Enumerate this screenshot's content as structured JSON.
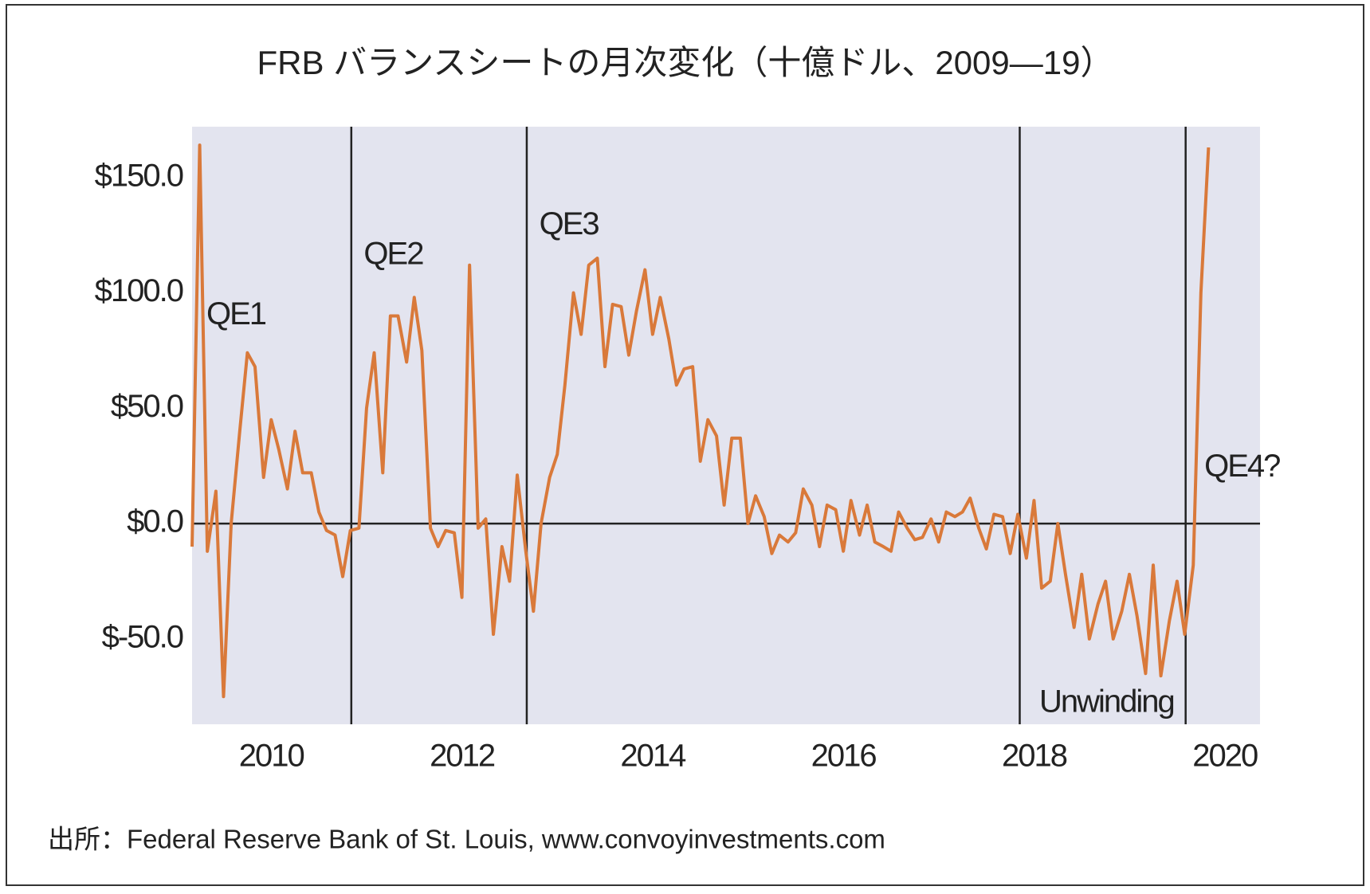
{
  "chart_data": {
    "type": "line",
    "title": "FRB バランスシートの月次変化（十億ドル、2009—19）",
    "source": "出所：Federal Reserve Bank of St. Louis, www.convoyinvestments.com",
    "xlim": [
      2009.17,
      2020.37
    ],
    "xticks": [
      2010,
      2012,
      2014,
      2016,
      2018,
      2020
    ],
    "ylim": [
      -87,
      172
    ],
    "yticks": [
      {
        "value": -50,
        "label": "$-50.0"
      },
      {
        "value": 0,
        "label": "$0.0"
      },
      {
        "value": 50,
        "label": "$50.0"
      },
      {
        "value": 100,
        "label": "$100.0"
      },
      {
        "value": 150,
        "label": "$150.0"
      }
    ],
    "vlines": [
      2010.84,
      2012.68,
      2017.85,
      2019.59
    ],
    "annotations": [
      {
        "text": "QE1",
        "x": 2009.63,
        "y": 90
      },
      {
        "text": "QE2",
        "x": 2011.28,
        "y": 116
      },
      {
        "text": "QE3",
        "x": 2013.12,
        "y": 129
      },
      {
        "text": "Unwinding",
        "x": 2018.76,
        "y": -78
      },
      {
        "text": "QE4?",
        "x": 2020.18,
        "y": 24
      }
    ],
    "series": [
      {
        "color": "#d9793a",
        "x": [
          2009.17,
          2009.25,
          2009.33,
          2009.42,
          2009.5,
          2009.58,
          2009.67,
          2009.75,
          2009.83,
          2009.92,
          2010.0,
          2010.08,
          2010.17,
          2010.25,
          2010.33,
          2010.42,
          2010.5,
          2010.58,
          2010.67,
          2010.75,
          2010.83,
          2010.92,
          2011.0,
          2011.08,
          2011.17,
          2011.25,
          2011.33,
          2011.42,
          2011.5,
          2011.58,
          2011.67,
          2011.75,
          2011.83,
          2011.92,
          2012.0,
          2012.08,
          2012.17,
          2012.25,
          2012.33,
          2012.42,
          2012.5,
          2012.58,
          2012.67,
          2012.75,
          2012.83,
          2012.92,
          2013.0,
          2013.08,
          2013.17,
          2013.25,
          2013.33,
          2013.42,
          2013.5,
          2013.58,
          2013.67,
          2013.75,
          2013.83,
          2013.92,
          2014.0,
          2014.08,
          2014.17,
          2014.25,
          2014.33,
          2014.42,
          2014.5,
          2014.58,
          2014.67,
          2014.75,
          2014.83,
          2014.92,
          2015.0,
          2015.08,
          2015.17,
          2015.25,
          2015.33,
          2015.42,
          2015.5,
          2015.58,
          2015.67,
          2015.75,
          2015.83,
          2015.92,
          2016.0,
          2016.08,
          2016.17,
          2016.25,
          2016.33,
          2016.42,
          2016.5,
          2016.58,
          2016.67,
          2016.75,
          2016.83,
          2016.92,
          2017.0,
          2017.08,
          2017.17,
          2017.25,
          2017.33,
          2017.42,
          2017.5,
          2017.58,
          2017.67,
          2017.75,
          2017.83,
          2017.92,
          2018.0,
          2018.08,
          2018.17,
          2018.25,
          2018.33,
          2018.42,
          2018.5,
          2018.58,
          2018.67,
          2018.75,
          2018.83,
          2018.92,
          2019.0,
          2019.08,
          2019.17,
          2019.25,
          2019.33,
          2019.42,
          2019.5,
          2019.58,
          2019.67,
          2019.75,
          2019.83
        ],
        "values": [
          -10,
          164,
          -12,
          14,
          -75,
          0,
          40,
          74,
          68,
          20,
          45,
          32,
          15,
          40,
          22,
          22,
          5,
          -3,
          -5,
          -23,
          -3,
          -2,
          50,
          74,
          22,
          90,
          90,
          70,
          98,
          75,
          -2,
          -10,
          -3,
          -4,
          -32,
          112,
          -2,
          2,
          -48,
          -10,
          -25,
          21,
          -12,
          -38,
          0,
          20,
          30,
          60,
          100,
          82,
          112,
          115,
          68,
          95,
          94,
          73,
          92,
          110,
          82,
          98,
          80,
          60,
          67,
          68,
          27,
          45,
          38,
          8,
          37,
          37,
          0,
          12,
          3,
          -13,
          -5,
          -8,
          -4,
          15,
          8,
          -10,
          8,
          6,
          -12,
          10,
          -5,
          8,
          -8,
          -10,
          -12,
          5,
          -2,
          -7,
          -6,
          2,
          -8,
          5,
          3,
          5,
          11,
          -2,
          -11,
          4,
          3,
          -13,
          4,
          -15,
          10,
          -28,
          -25,
          0,
          -22,
          -45,
          -22,
          -50,
          -35,
          -25,
          -50,
          -38,
          -22,
          -40,
          -65,
          -18,
          -66,
          -42,
          -25,
          -48,
          -18,
          100,
          163
        ]
      }
    ]
  }
}
